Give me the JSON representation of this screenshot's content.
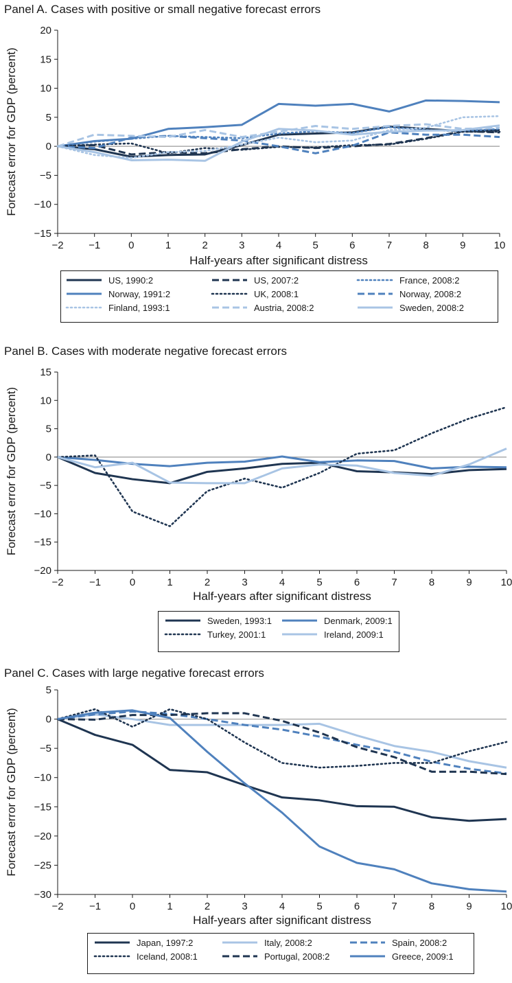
{
  "chart_data": [
    {
      "type": "line",
      "title": "Panel A. Cases with positive or small negative forecast errors",
      "xlabel": "Half-years after significant distress",
      "ylabel": "Forecast error for GDP (percent)",
      "x": [
        -2,
        -1,
        0,
        1,
        2,
        3,
        4,
        5,
        6,
        7,
        8,
        9,
        10
      ],
      "xticks": [
        "−2",
        "−1",
        "0",
        "1",
        "2",
        "3",
        "4",
        "5",
        "6",
        "7",
        "8",
        "9",
        "10"
      ],
      "yticks": [
        20,
        15,
        10,
        5,
        0,
        -5,
        -10,
        -15
      ],
      "ytick_labels": [
        "20",
        "15",
        "10",
        "5",
        "0",
        "−5",
        "−10",
        "−15"
      ],
      "xlim": [
        -2,
        10
      ],
      "ylim": [
        -15,
        20
      ],
      "legend": "bottom",
      "grid": false,
      "series": [
        {
          "name": "US, 1990:2",
          "color": "#1f3551",
          "dash": "solid",
          "values": [
            0,
            -0.5,
            -1.8,
            -1.5,
            -1.4,
            0.2,
            2.0,
            2.2,
            2.4,
            3.4,
            3.0,
            2.6,
            2.8
          ]
        },
        {
          "name": "US, 2007:2",
          "color": "#1f3551",
          "dash": "dashed",
          "values": [
            0,
            0.2,
            -1.4,
            -1.0,
            -1.2,
            -0.5,
            0.0,
            -0.3,
            0.0,
            0.4,
            1.4,
            2.6,
            2.4
          ]
        },
        {
          "name": "France, 2008:2",
          "color": "#4f81bd",
          "dash": "dotted",
          "values": [
            0,
            0.8,
            1.3,
            1.8,
            1.6,
            1.4,
            2.2,
            2.6,
            2.3,
            3.3,
            2.8,
            2.6,
            3.0
          ]
        },
        {
          "name": "Norway, 1991:2",
          "color": "#4f81bd",
          "dash": "solid",
          "values": [
            0,
            0.9,
            1.3,
            3.0,
            3.3,
            3.7,
            7.3,
            7.0,
            7.3,
            6.0,
            7.9,
            7.8,
            7.6
          ]
        },
        {
          "name": "UK, 2008:1",
          "color": "#1f3551",
          "dash": "dotted",
          "values": [
            0,
            0.3,
            0.5,
            -1.2,
            -0.3,
            -0.6,
            -0.1,
            -0.2,
            0.2,
            0.3,
            1.3,
            2.5,
            2.5
          ]
        },
        {
          "name": "Norway, 2008:2",
          "color": "#4f81bd",
          "dash": "dashed",
          "values": [
            0,
            -0.3,
            1.5,
            1.8,
            1.4,
            1.0,
            0.0,
            -1.2,
            0.1,
            2.4,
            2.0,
            2.0,
            1.6
          ]
        },
        {
          "name": "Finland, 1993:1",
          "color": "#a8c4e4",
          "dash": "dotted",
          "values": [
            0,
            -1.5,
            -2.0,
            -1.0,
            -0.8,
            0.3,
            1.5,
            0.7,
            1.0,
            2.8,
            3.2,
            5.0,
            5.2
          ]
        },
        {
          "name": "Austria, 2008:2",
          "color": "#a8c4e4",
          "dash": "dashed",
          "values": [
            0,
            2.0,
            1.8,
            1.6,
            2.8,
            1.6,
            2.5,
            3.5,
            3.0,
            3.5,
            3.8,
            3.0,
            3.2
          ]
        },
        {
          "name": "Sweden, 2008:2",
          "color": "#a8c4e4",
          "dash": "solid",
          "values": [
            0,
            -1.0,
            -2.4,
            -2.3,
            -2.5,
            0.8,
            3.0,
            2.7,
            2.0,
            2.5,
            2.7,
            2.8,
            3.6
          ]
        }
      ]
    },
    {
      "type": "line",
      "title": "Panel B. Cases with moderate negative forecast errors",
      "xlabel": "Half-years after significant distress",
      "ylabel": "Forecast error for GDP (percent)",
      "x": [
        -2,
        -1,
        0,
        1,
        2,
        3,
        4,
        5,
        6,
        7,
        8,
        9,
        10
      ],
      "xticks": [
        "−2",
        "−1",
        "0",
        "1",
        "2",
        "3",
        "4",
        "5",
        "6",
        "7",
        "8",
        "9",
        "10"
      ],
      "yticks": [
        15,
        10,
        5,
        0,
        -5,
        -10,
        -15,
        -20
      ],
      "ytick_labels": [
        "15",
        "10",
        "5",
        "0",
        "−5",
        "−10",
        "−15",
        "−20"
      ],
      "xlim": [
        -2,
        10
      ],
      "ylim": [
        -20,
        15
      ],
      "legend": "bottom",
      "grid": false,
      "series": [
        {
          "name": "Sweden, 1993:1",
          "color": "#1f3551",
          "dash": "solid",
          "values": [
            0,
            -2.8,
            -3.9,
            -4.6,
            -2.6,
            -2.0,
            -1.2,
            -1.0,
            -2.5,
            -2.7,
            -3.0,
            -2.3,
            -2.1
          ]
        },
        {
          "name": "Denmark, 2009:1",
          "color": "#4f81bd",
          "dash": "solid",
          "values": [
            0,
            -0.5,
            -1.2,
            -1.6,
            -1.0,
            -0.8,
            0.1,
            -0.9,
            -0.6,
            -0.7,
            -2.0,
            -1.7,
            -1.8
          ]
        },
        {
          "name": "Turkey, 2001:1",
          "color": "#1f3551",
          "dash": "dotted",
          "values": [
            0,
            0.3,
            -9.6,
            -12.2,
            -6.0,
            -3.8,
            -5.4,
            -2.8,
            0.6,
            1.2,
            4.2,
            6.8,
            8.8
          ]
        },
        {
          "name": "Ireland, 2009:1",
          "color": "#a8c4e4",
          "dash": "solid",
          "values": [
            0,
            -1.8,
            -1.0,
            -4.5,
            -4.6,
            -4.6,
            -2.0,
            -1.3,
            -1.5,
            -2.8,
            -3.3,
            -1.3,
            1.5
          ]
        }
      ]
    },
    {
      "type": "line",
      "title": "Panel C. Cases with large negative forecast errors",
      "xlabel": "Half-years after significant distress",
      "ylabel": "Forecast error for GDP (percent)",
      "x": [
        -2,
        -1,
        0,
        1,
        2,
        3,
        4,
        5,
        6,
        7,
        8,
        9,
        10
      ],
      "xticks": [
        "−2",
        "−1",
        "0",
        "1",
        "2",
        "3",
        "4",
        "5",
        "6",
        "7",
        "8",
        "9",
        "10"
      ],
      "yticks": [
        5,
        0,
        -5,
        -10,
        -15,
        -20,
        -25,
        -30
      ],
      "ytick_labels": [
        "5",
        "0",
        "−5",
        "−10",
        "−15",
        "−20",
        "−25",
        "−30"
      ],
      "xlim": [
        -2,
        10
      ],
      "ylim": [
        -30,
        5
      ],
      "legend": "bottom",
      "grid": false,
      "series": [
        {
          "name": "Japan, 1997:2",
          "color": "#1f3551",
          "dash": "solid",
          "values": [
            0,
            -2.7,
            -4.4,
            -8.7,
            -9.1,
            -11.3,
            -13.4,
            -13.9,
            -14.9,
            -15.0,
            -16.8,
            -17.4,
            -17.1
          ]
        },
        {
          "name": "Italy, 2008:2",
          "color": "#a8c4e4",
          "dash": "solid",
          "values": [
            0,
            0.8,
            0.0,
            -1.0,
            -1.0,
            -1.0,
            -1.0,
            -0.8,
            -2.8,
            -4.6,
            -5.6,
            -7.2,
            -8.3
          ]
        },
        {
          "name": "Spain, 2008:2",
          "color": "#4f81bd",
          "dash": "dashed",
          "values": [
            0,
            0.8,
            1.3,
            0.9,
            0.0,
            -1.0,
            -1.8,
            -3.0,
            -4.4,
            -5.6,
            -7.3,
            -8.5,
            -9.3
          ]
        },
        {
          "name": "Iceland, 2008:1",
          "color": "#1f3551",
          "dash": "dotted",
          "values": [
            0,
            1.7,
            -1.3,
            1.7,
            0.0,
            -4.0,
            -7.5,
            -8.3,
            -8.0,
            -7.5,
            -7.5,
            -5.5,
            -3.9
          ]
        },
        {
          "name": "Portugal, 2008:2",
          "color": "#1f3551",
          "dash": "dashed",
          "values": [
            0,
            -0.1,
            0.7,
            0.7,
            1.0,
            1.0,
            -0.3,
            -2.3,
            -4.8,
            -6.5,
            -9.0,
            -9.0,
            -9.4
          ]
        },
        {
          "name": "Greece, 2009:1",
          "color": "#4f81bd",
          "dash": "solid",
          "values": [
            0,
            1.1,
            1.5,
            0.2,
            -5.6,
            -11.0,
            -16.0,
            -21.8,
            -24.6,
            -25.7,
            -28.1,
            -29.1,
            -29.5
          ]
        }
      ]
    }
  ]
}
